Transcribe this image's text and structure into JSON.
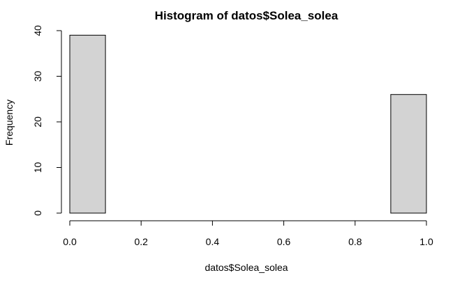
{
  "chart_data": {
    "type": "bar",
    "title": "Histogram of datos$Solea_solea",
    "xlabel": "datos$Solea_solea",
    "ylabel": "Frequency",
    "bins": [
      {
        "start": 0.0,
        "end": 0.1,
        "count": 39
      },
      {
        "start": 0.1,
        "end": 0.2,
        "count": 0
      },
      {
        "start": 0.2,
        "end": 0.3,
        "count": 0
      },
      {
        "start": 0.3,
        "end": 0.4,
        "count": 0
      },
      {
        "start": 0.4,
        "end": 0.5,
        "count": 0
      },
      {
        "start": 0.5,
        "end": 0.6,
        "count": 0
      },
      {
        "start": 0.6,
        "end": 0.7,
        "count": 0
      },
      {
        "start": 0.7,
        "end": 0.8,
        "count": 0
      },
      {
        "start": 0.8,
        "end": 0.9,
        "count": 0
      },
      {
        "start": 0.9,
        "end": 1.0,
        "count": 26
      }
    ],
    "xlim": [
      0,
      1
    ],
    "ylim": [
      0,
      40
    ],
    "xticks": [
      "0.0",
      "0.2",
      "0.4",
      "0.6",
      "0.8",
      "1.0"
    ],
    "yticks": [
      "0",
      "10",
      "20",
      "30",
      "40"
    ],
    "grid": false,
    "colors": {
      "bar_fill": "#d3d3d3",
      "bar_stroke": "#000000"
    }
  }
}
